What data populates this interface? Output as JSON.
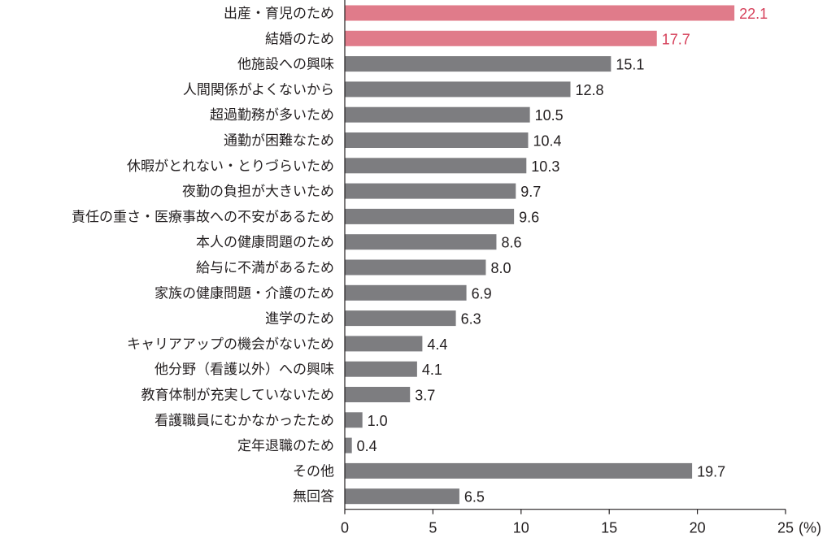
{
  "chart_data": {
    "type": "bar",
    "orientation": "horizontal",
    "unit": "(%)",
    "xlim": [
      0,
      25
    ],
    "xticks": [
      0,
      5,
      10,
      15,
      20,
      25
    ],
    "grid": false,
    "categories": [
      "出産・育児のため",
      "結婚のため",
      "他施設への興味",
      "人間関係がよくないから",
      "超過勤務が多いため",
      "通勤が困難なため",
      "休暇がとれない・とりづらいため",
      "夜勤の負担が大きいため",
      "責任の重さ・医療事故への不安があるため",
      "本人の健康問題のため",
      "給与に不満があるため",
      "家族の健康問題・介護のため",
      "進学のため",
      "キャリアアップの機会がないため",
      "他分野（看護以外）への興味",
      "教育体制が充実していないため",
      "看護職員にむかなかったため",
      "定年退職のため",
      "その他",
      "無回答"
    ],
    "values": [
      22.1,
      17.7,
      15.1,
      12.8,
      10.5,
      10.4,
      10.3,
      9.7,
      9.6,
      8.6,
      8.0,
      6.9,
      6.3,
      4.4,
      4.1,
      3.7,
      1.0,
      0.4,
      19.7,
      6.5
    ],
    "value_labels": [
      "22.1",
      "17.7",
      "15.1",
      "12.8",
      "10.5",
      "10.4",
      "10.3",
      "9.7",
      "9.6",
      "8.6",
      "8.0",
      "6.9",
      "6.3",
      "4.4",
      "4.1",
      "3.7",
      "1.0",
      "0.4",
      "19.7",
      "6.5"
    ],
    "highlight_count": 2,
    "colors": {
      "highlight_bar": "#e07b8a",
      "highlight_text": "#d6405a",
      "bar": "#7d7d80",
      "text": "#231f20",
      "axis": "#231f20"
    }
  }
}
